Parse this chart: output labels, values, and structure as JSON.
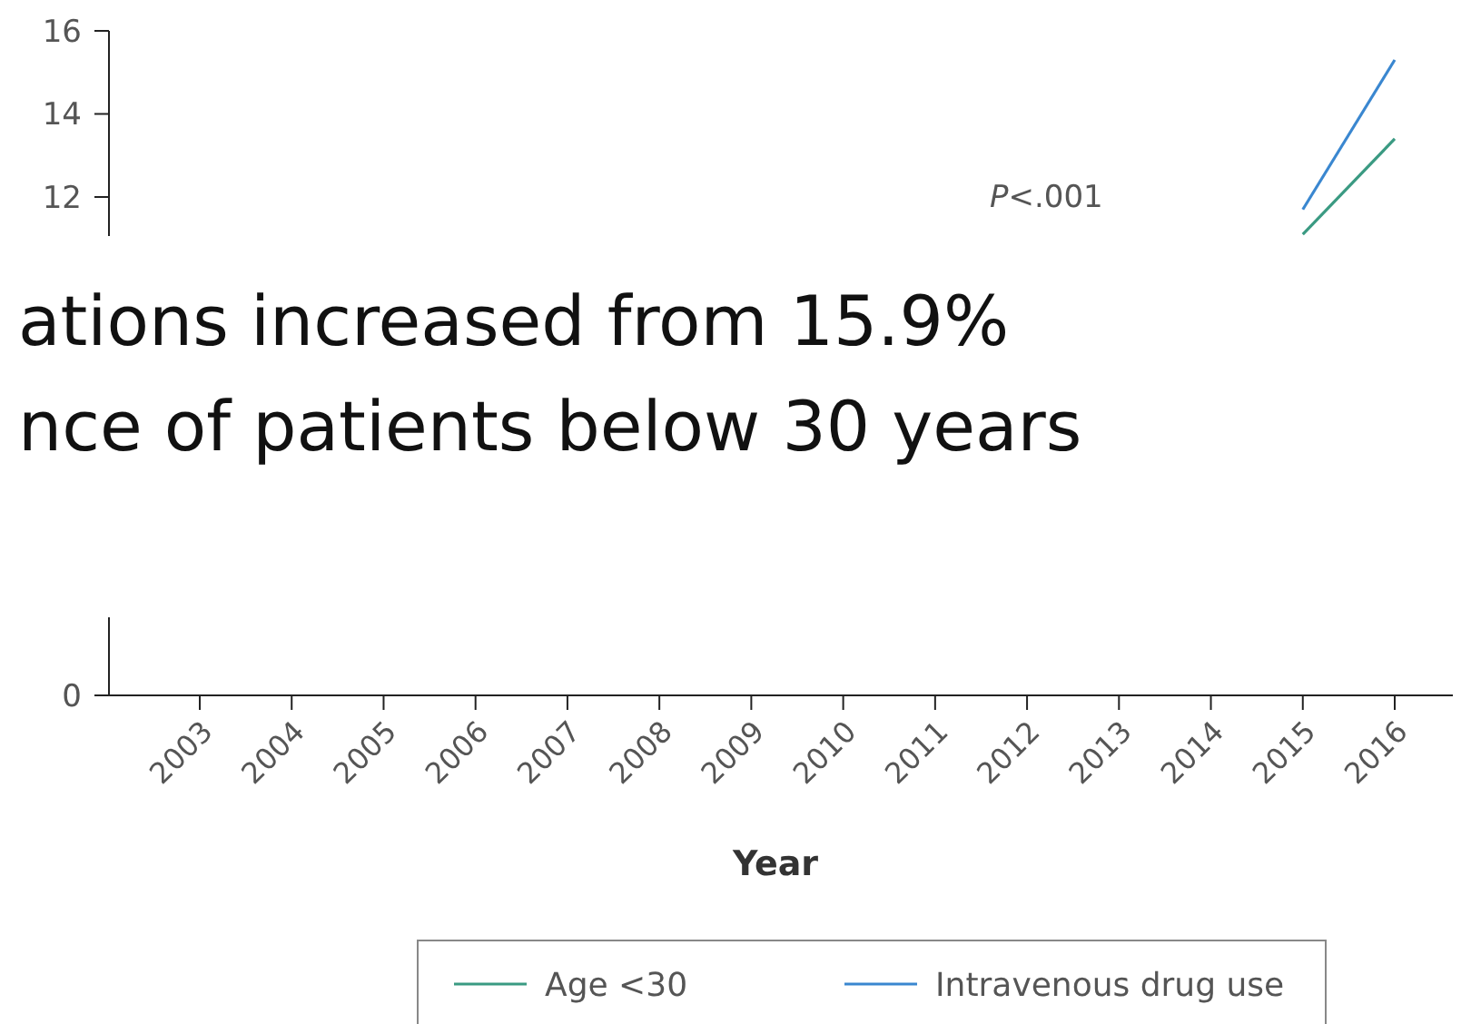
{
  "chart_data": {
    "type": "line",
    "xlabel": "Year",
    "categories": [
      "2003",
      "2004",
      "2005",
      "2006",
      "2007",
      "2008",
      "2009",
      "2010",
      "2011",
      "2012",
      "2013",
      "2014",
      "2015",
      "2016"
    ],
    "series": [
      {
        "name": "Age <30",
        "color": "#3a9a82",
        "values": [
          null,
          null,
          null,
          null,
          null,
          null,
          null,
          null,
          null,
          null,
          null,
          null,
          11.1,
          13.4
        ]
      },
      {
        "name": "Intravenous drug use",
        "color": "#3a87d0",
        "values": [
          null,
          null,
          null,
          null,
          null,
          null,
          null,
          null,
          null,
          null,
          null,
          null,
          11.7,
          15.3
        ]
      }
    ],
    "ylim": [
      0,
      16
    ],
    "yticks": [
      0,
      12,
      14,
      16
    ],
    "grid": false,
    "legend": "bottom",
    "marker": "none",
    "line_style": "solid",
    "annotations": [
      "P<.001",
      "ations increased from 15.9%",
      "nce of patients below 30 years"
    ]
  }
}
